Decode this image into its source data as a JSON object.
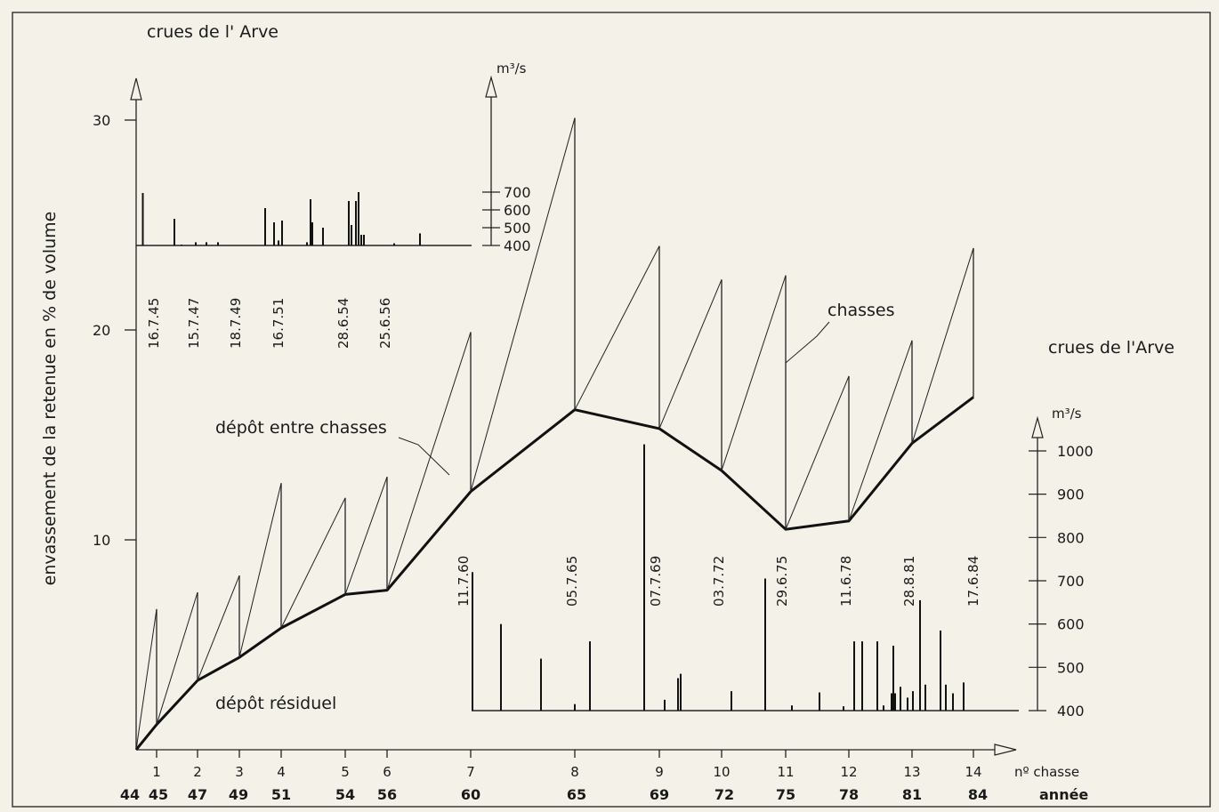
{
  "chart_data": {
    "type": "line",
    "y_axis": {
      "label": "envassement de la retenue en % de volume",
      "ticks": [
        10,
        20,
        30
      ],
      "range": [
        0,
        31
      ]
    },
    "x_axis": {
      "label_chasse": "nº chasse",
      "label_year": "année",
      "chasse_ticks": [
        "1",
        "2",
        "3",
        "4",
        "5",
        "6",
        "7",
        "8",
        "9",
        "10",
        "11",
        "12",
        "13",
        "14"
      ],
      "year_labels": [
        "44",
        "45",
        "47",
        "49",
        "51",
        "54",
        "56",
        "60",
        "65",
        "69",
        "72",
        "75",
        "78",
        "81",
        "84"
      ]
    },
    "series": [
      {
        "name": "dépôt résiduel",
        "x": [
          "44",
          "45",
          "47",
          "49",
          "51",
          "54",
          "56",
          "60",
          "65",
          "69",
          "72",
          "75",
          "78",
          "81",
          "84"
        ],
        "values": [
          0,
          1.2,
          3.3,
          4.4,
          5.8,
          7.4,
          7.6,
          12.3,
          16.2,
          15.3,
          13.3,
          10.5,
          10.9,
          14.6,
          16.8
        ]
      },
      {
        "name": "chasses",
        "x": [
          "45",
          "47",
          "49",
          "51",
          "54",
          "56",
          "60",
          "65",
          "69",
          "72",
          "75",
          "78",
          "81",
          "84"
        ],
        "values": [
          6.7,
          7.5,
          8.3,
          12.7,
          12.0,
          13.0,
          19.9,
          30.1,
          24.0,
          22.4,
          22.6,
          17.8,
          19.5,
          23.9
        ]
      }
    ],
    "annotations": {
      "depot_entre": "dépôt entre chasses",
      "depot_residuel": "dépôt résiduel",
      "chasses": "chasses"
    },
    "flood_panel_top": {
      "title": "crues de l' Arve",
      "unit": "m³/s",
      "ticks": [
        400,
        500,
        600,
        700
      ],
      "dates": [
        "16.7.45",
        "15.7.47",
        "18.7.49",
        "16.7.51",
        "28.6.54",
        "25.6.56"
      ],
      "peaks": [
        {
          "x": 160.5,
          "v": 695
        },
        {
          "x": 196,
          "v": 550
        },
        {
          "x": 204,
          "v": 405
        },
        {
          "x": 220,
          "v": 418
        },
        {
          "x": 232,
          "v": 418
        },
        {
          "x": 245,
          "v": 418
        },
        {
          "x": 298,
          "v": 610
        },
        {
          "x": 308,
          "v": 530
        },
        {
          "x": 313,
          "v": 428
        },
        {
          "x": 317,
          "v": 540
        },
        {
          "x": 345,
          "v": 418
        },
        {
          "x": 349,
          "v": 660
        },
        {
          "x": 351,
          "v": 530
        },
        {
          "x": 363,
          "v": 500
        },
        {
          "x": 392,
          "v": 650
        },
        {
          "x": 395,
          "v": 515
        },
        {
          "x": 400,
          "v": 650
        },
        {
          "x": 403,
          "v": 700
        },
        {
          "x": 406,
          "v": 460
        },
        {
          "x": 409,
          "v": 460
        },
        {
          "x": 443,
          "v": 412
        },
        {
          "x": 472,
          "v": 468
        }
      ]
    },
    "flood_panel_bottom": {
      "title": "crues de l'Arve",
      "unit": "m³/s",
      "ticks": [
        400,
        500,
        600,
        700,
        800,
        900,
        1000
      ],
      "dates": [
        "11.7.60",
        "05.7.65",
        "07.7.69",
        "03.7.72",
        "29.6.75",
        "11.6.78",
        "28.8.81",
        "17.6.84"
      ],
      "peaks": [
        {
          "x": 531,
          "v": 720
        },
        {
          "x": 563,
          "v": 600
        },
        {
          "x": 608,
          "v": 520
        },
        {
          "x": 646,
          "v": 415
        },
        {
          "x": 663,
          "v": 560
        },
        {
          "x": 724,
          "v": 1015
        },
        {
          "x": 747,
          "v": 425
        },
        {
          "x": 762,
          "v": 475
        },
        {
          "x": 765,
          "v": 485
        },
        {
          "x": 822,
          "v": 445
        },
        {
          "x": 860,
          "v": 705
        },
        {
          "x": 890,
          "v": 412
        },
        {
          "x": 921,
          "v": 442
        },
        {
          "x": 948,
          "v": 410
        },
        {
          "x": 960,
          "v": 560
        },
        {
          "x": 969,
          "v": 560
        },
        {
          "x": 986,
          "v": 560
        },
        {
          "x": 993,
          "v": 412
        },
        {
          "x": 1002,
          "v": 440
        },
        {
          "x": 1004,
          "v": 550
        },
        {
          "x": 1006,
          "v": 440
        },
        {
          "x": 1012,
          "v": 455
        },
        {
          "x": 1020,
          "v": 430
        },
        {
          "x": 1026,
          "v": 445
        },
        {
          "x": 1034,
          "v": 655
        },
        {
          "x": 1040,
          "v": 460
        },
        {
          "x": 1057,
          "v": 585
        },
        {
          "x": 1063,
          "v": 460
        },
        {
          "x": 1071,
          "v": 440
        },
        {
          "x": 1083,
          "v": 465
        }
      ]
    }
  }
}
